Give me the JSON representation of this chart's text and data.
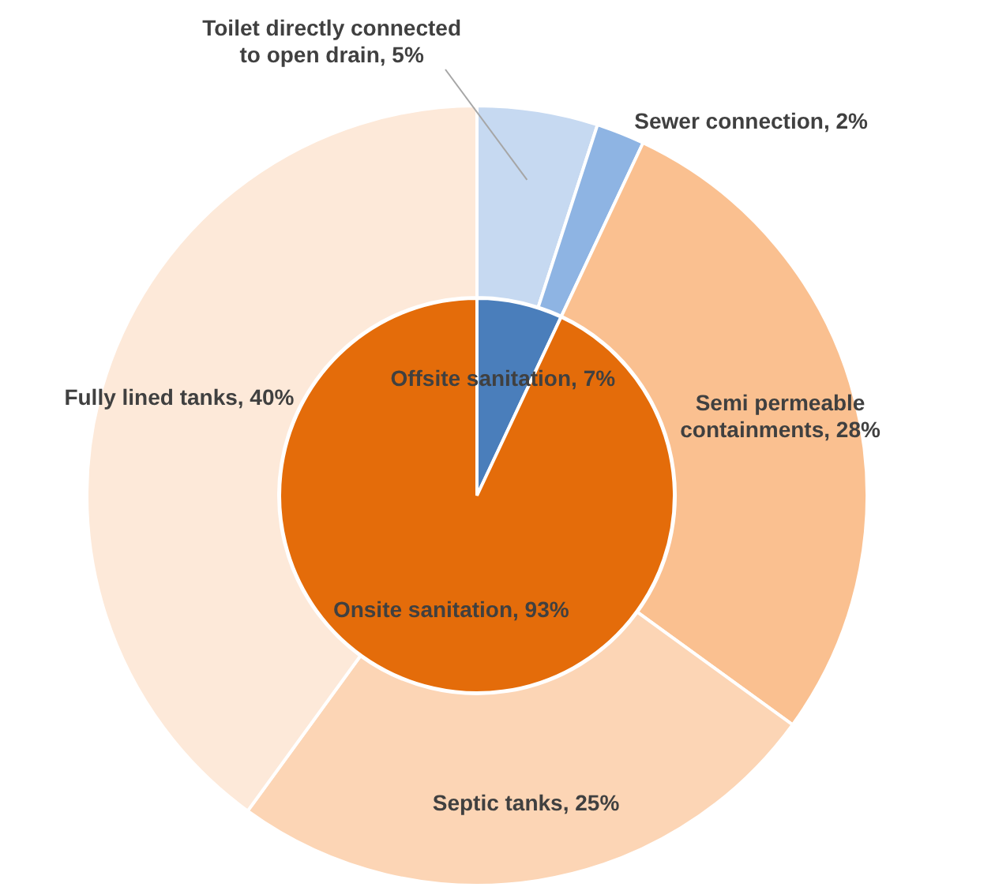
{
  "chart_data": [
    {
      "type": "pie",
      "categories": [
        "Offsite sanitation",
        "Onsite sanitation"
      ],
      "values": [
        7,
        93
      ],
      "colors": [
        "#4a7ebb",
        "#e46c0a"
      ],
      "value_labels": [
        "7%",
        "93%"
      ]
    },
    {
      "type": "donut",
      "categories": [
        "Toilet directly connected to open drain",
        "Sewer connection",
        "Semi permeable containments",
        "Septic tanks",
        "Fully lined tanks"
      ],
      "values": [
        5,
        2,
        28,
        25,
        40
      ],
      "colors": [
        "#c6d9f1",
        "#8eb4e3",
        "#fac090",
        "#fcd5b5",
        "#fde9d9"
      ],
      "value_labels": [
        "5%",
        "2%",
        "28%",
        "25%",
        "40%"
      ]
    }
  ]
}
